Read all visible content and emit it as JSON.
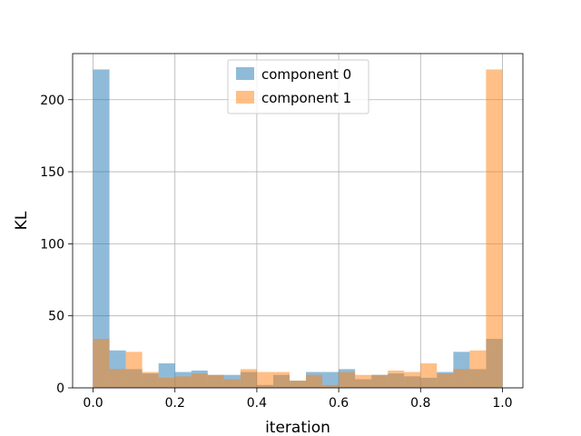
{
  "chart_data": {
    "type": "histogram",
    "title": "",
    "xlabel": "iteration",
    "ylabel": "KL",
    "xlim": [
      -0.05,
      1.05
    ],
    "ylim": [
      0,
      232
    ],
    "x_ticks": [
      0.0,
      0.2,
      0.4,
      0.6,
      0.8,
      1.0
    ],
    "x_tick_labels": [
      "0.0",
      "0.2",
      "0.4",
      "0.6",
      "0.8",
      "1.0"
    ],
    "y_ticks": [
      0,
      50,
      100,
      150,
      200
    ],
    "y_tick_labels": [
      "0",
      "50",
      "100",
      "150",
      "200"
    ],
    "grid": true,
    "legend_position": "top-center",
    "bin_edges": [
      0.0,
      0.04,
      0.08,
      0.12,
      0.16,
      0.2,
      0.24,
      0.28,
      0.32,
      0.36,
      0.4,
      0.44,
      0.48,
      0.52,
      0.56,
      0.6,
      0.64,
      0.68,
      0.72,
      0.76,
      0.8,
      0.84,
      0.88,
      0.92,
      0.96,
      1.0
    ],
    "series": [
      {
        "name": "component 0",
        "color": "#1f77b4",
        "opacity": 0.5,
        "values": [
          221,
          26,
          13,
          10,
          17,
          11,
          12,
          9,
          9,
          11,
          2,
          9,
          5,
          11,
          11,
          13,
          6,
          9,
          10,
          8,
          7,
          11,
          25,
          13,
          34
        ]
      },
      {
        "name": "component 1",
        "color": "#ff7f0e",
        "opacity": 0.5,
        "values": [
          34,
          13,
          25,
          11,
          7,
          8,
          10,
          9,
          6,
          13,
          11,
          11,
          5,
          9,
          2,
          11,
          9,
          9,
          12,
          11,
          17,
          10,
          13,
          26,
          221
        ]
      }
    ]
  }
}
